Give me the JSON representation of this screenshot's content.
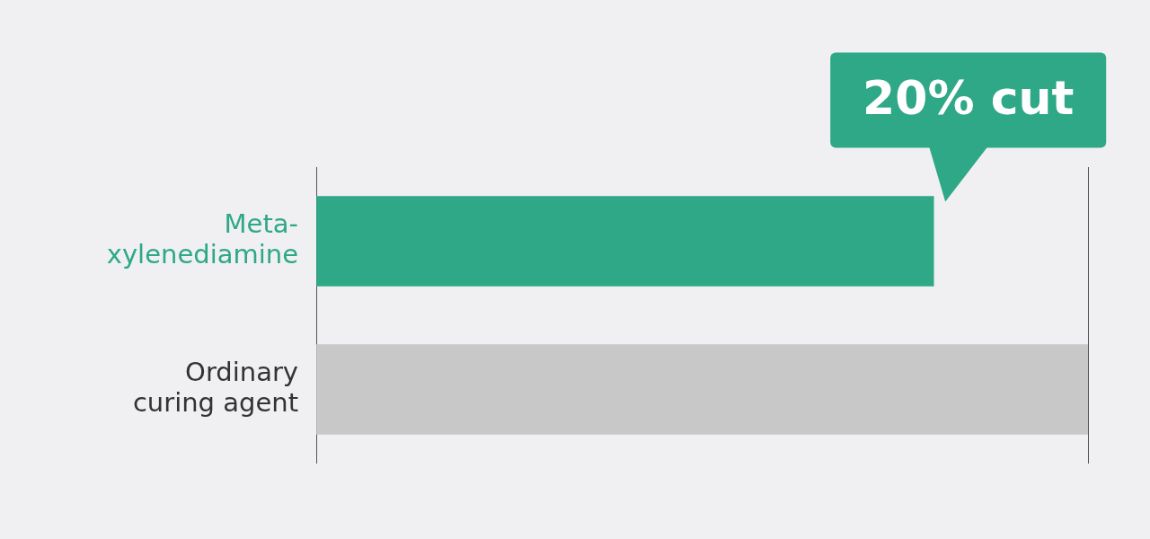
{
  "chart_data": {
    "type": "bar",
    "orientation": "horizontal",
    "categories": [
      "Meta-xylenediamine",
      "Ordinary curing agent"
    ],
    "values": [
      80,
      100
    ],
    "colors": [
      "#2ea886",
      "#c8c8c8"
    ],
    "xlim": [
      0,
      100
    ],
    "xticks": [
      0,
      100
    ],
    "grid": true,
    "tick_labels": "y",
    "annotations": [
      {
        "text": "20% cut",
        "category": "Meta-xylenediamine"
      }
    ]
  }
}
